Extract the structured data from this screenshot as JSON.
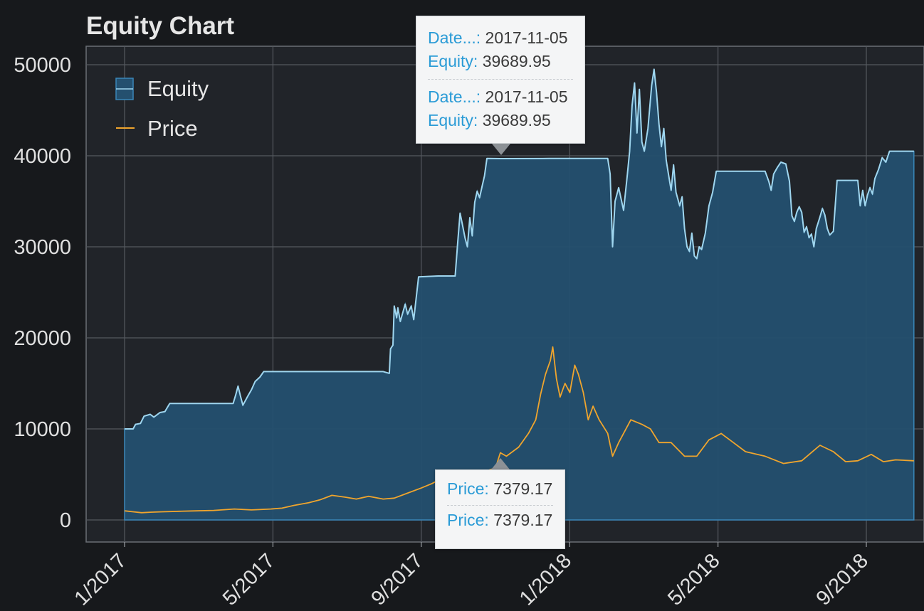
{
  "chart_data": {
    "type": "line",
    "title": "Equity Chart",
    "xlabel": "",
    "ylabel": "",
    "ylim": [
      0,
      50000
    ],
    "y_ticks": [
      "0",
      "10000",
      "20000",
      "30000",
      "40000",
      "50000"
    ],
    "x_ticks": [
      "1/2017",
      "5/2017",
      "9/2017",
      "1/2018",
      "5/2018",
      "9/2018"
    ],
    "grid": true,
    "legend_position": "top-left",
    "series": [
      {
        "name": "Equity",
        "style": "area",
        "color": "#9fd6ef",
        "fill": "#24506f",
        "points": [
          [
            "2017-01-01",
            10000
          ],
          [
            "2017-01-08",
            10000
          ],
          [
            "2017-01-10",
            10500
          ],
          [
            "2017-01-14",
            10600
          ],
          [
            "2017-01-17",
            11400
          ],
          [
            "2017-01-22",
            11600
          ],
          [
            "2017-01-25",
            11300
          ],
          [
            "2017-01-30",
            11800
          ],
          [
            "2017-02-03",
            11900
          ],
          [
            "2017-02-07",
            12800
          ],
          [
            "2017-03-10",
            12800
          ],
          [
            "2017-03-31",
            12800
          ],
          [
            "2017-04-02",
            13700
          ],
          [
            "2017-04-04",
            14700
          ],
          [
            "2017-04-06",
            13600
          ],
          [
            "2017-04-08",
            12600
          ],
          [
            "2017-04-12",
            13600
          ],
          [
            "2017-04-15",
            14300
          ],
          [
            "2017-04-18",
            15200
          ],
          [
            "2017-04-22",
            15700
          ],
          [
            "2017-04-25",
            16300
          ],
          [
            "2017-05-15",
            16300
          ],
          [
            "2017-08-01",
            16300
          ],
          [
            "2017-08-06",
            16100
          ],
          [
            "2017-08-07",
            18800
          ],
          [
            "2017-08-09",
            19200
          ],
          [
            "2017-08-10",
            23500
          ],
          [
            "2017-08-12",
            22200
          ],
          [
            "2017-08-13",
            23300
          ],
          [
            "2017-08-15",
            21800
          ],
          [
            "2017-08-19",
            23700
          ],
          [
            "2017-08-21",
            22600
          ],
          [
            "2017-08-24",
            23500
          ],
          [
            "2017-08-26",
            22000
          ],
          [
            "2017-08-30",
            26700
          ],
          [
            "2017-09-15",
            26800
          ],
          [
            "2017-09-29",
            26800
          ],
          [
            "2017-10-01",
            30400
          ],
          [
            "2017-10-03",
            33700
          ],
          [
            "2017-10-05",
            32400
          ],
          [
            "2017-10-07",
            31000
          ],
          [
            "2017-10-09",
            30000
          ],
          [
            "2017-10-11",
            33200
          ],
          [
            "2017-10-13",
            31200
          ],
          [
            "2017-10-15",
            34900
          ],
          [
            "2017-10-17",
            36100
          ],
          [
            "2017-10-19",
            35400
          ],
          [
            "2017-10-21",
            36600
          ],
          [
            "2017-10-23",
            37800
          ],
          [
            "2017-10-25",
            39700
          ],
          [
            "2017-11-05",
            39690
          ],
          [
            "2017-12-15",
            39700
          ],
          [
            "2018-02-01",
            39700
          ],
          [
            "2018-02-03",
            38000
          ],
          [
            "2018-02-05",
            30000
          ],
          [
            "2018-02-07",
            35000
          ],
          [
            "2018-02-10",
            36500
          ],
          [
            "2018-02-14",
            34000
          ],
          [
            "2018-02-17",
            37800
          ],
          [
            "2018-02-19",
            40500
          ],
          [
            "2018-02-21",
            45500
          ],
          [
            "2018-02-23",
            48000
          ],
          [
            "2018-02-25",
            42500
          ],
          [
            "2018-02-27",
            47300
          ],
          [
            "2018-03-01",
            41500
          ],
          [
            "2018-03-03",
            40500
          ],
          [
            "2018-03-06",
            43000
          ],
          [
            "2018-03-09",
            47700
          ],
          [
            "2018-03-11",
            49500
          ],
          [
            "2018-03-13",
            47000
          ],
          [
            "2018-03-15",
            43500
          ],
          [
            "2018-03-17",
            41000
          ],
          [
            "2018-03-19",
            43000
          ],
          [
            "2018-03-21",
            39500
          ],
          [
            "2018-03-23",
            37800
          ],
          [
            "2018-03-25",
            36200
          ],
          [
            "2018-03-27",
            39000
          ],
          [
            "2018-03-29",
            36000
          ],
          [
            "2018-04-01",
            34500
          ],
          [
            "2018-04-03",
            35500
          ],
          [
            "2018-04-05",
            32000
          ],
          [
            "2018-04-07",
            30000
          ],
          [
            "2018-04-09",
            29500
          ],
          [
            "2018-04-11",
            31500
          ],
          [
            "2018-04-13",
            29000
          ],
          [
            "2018-04-15",
            28700
          ],
          [
            "2018-04-17",
            30000
          ],
          [
            "2018-04-19",
            29700
          ],
          [
            "2018-04-22",
            31500
          ],
          [
            "2018-04-25",
            34500
          ],
          [
            "2018-04-28",
            36000
          ],
          [
            "2018-05-01",
            38300
          ],
          [
            "2018-06-10",
            38300
          ],
          [
            "2018-06-13",
            37200
          ],
          [
            "2018-06-15",
            36200
          ],
          [
            "2018-06-17",
            38000
          ],
          [
            "2018-06-20",
            38700
          ],
          [
            "2018-06-23",
            39300
          ],
          [
            "2018-06-27",
            39100
          ],
          [
            "2018-06-30",
            37200
          ],
          [
            "2018-07-02",
            33400
          ],
          [
            "2018-07-04",
            32800
          ],
          [
            "2018-07-06",
            33800
          ],
          [
            "2018-07-08",
            34400
          ],
          [
            "2018-07-10",
            33800
          ],
          [
            "2018-07-12",
            31600
          ],
          [
            "2018-07-14",
            32200
          ],
          [
            "2018-07-16",
            31000
          ],
          [
            "2018-07-18",
            31400
          ],
          [
            "2018-07-20",
            30000
          ],
          [
            "2018-07-22",
            32000
          ],
          [
            "2018-07-25",
            33300
          ],
          [
            "2018-07-27",
            34200
          ],
          [
            "2018-07-29",
            33500
          ],
          [
            "2018-07-31",
            32000
          ],
          [
            "2018-08-02",
            31300
          ],
          [
            "2018-08-05",
            31700
          ],
          [
            "2018-08-08",
            37300
          ],
          [
            "2018-08-25",
            37300
          ],
          [
            "2018-08-27",
            34500
          ],
          [
            "2018-08-29",
            36200
          ],
          [
            "2018-08-31",
            34500
          ],
          [
            "2018-09-02",
            35700
          ],
          [
            "2018-09-04",
            36500
          ],
          [
            "2018-09-06",
            35800
          ],
          [
            "2018-09-08",
            37500
          ],
          [
            "2018-09-11",
            38500
          ],
          [
            "2018-09-14",
            39800
          ],
          [
            "2018-09-17",
            39300
          ],
          [
            "2018-09-20",
            40500
          ],
          [
            "2018-10-10",
            40500
          ]
        ]
      },
      {
        "name": "Price",
        "style": "line",
        "color": "#f0a52d",
        "points": [
          [
            "2017-01-01",
            1000
          ],
          [
            "2017-01-08",
            900
          ],
          [
            "2017-01-15",
            800
          ],
          [
            "2017-01-22",
            850
          ],
          [
            "2017-02-01",
            900
          ],
          [
            "2017-02-15",
            950
          ],
          [
            "2017-03-01",
            1000
          ],
          [
            "2017-03-15",
            1050
          ],
          [
            "2017-04-01",
            1200
          ],
          [
            "2017-04-15",
            1100
          ],
          [
            "2017-05-01",
            1200
          ],
          [
            "2017-05-10",
            1300
          ],
          [
            "2017-05-20",
            1600
          ],
          [
            "2017-06-01",
            1900
          ],
          [
            "2017-06-10",
            2200
          ],
          [
            "2017-06-20",
            2700
          ],
          [
            "2017-07-01",
            2500
          ],
          [
            "2017-07-10",
            2300
          ],
          [
            "2017-07-20",
            2600
          ],
          [
            "2017-08-01",
            2300
          ],
          [
            "2017-08-10",
            2400
          ],
          [
            "2017-08-20",
            2900
          ],
          [
            "2017-09-01",
            3500
          ],
          [
            "2017-09-10",
            4000
          ],
          [
            "2017-09-20",
            4700
          ],
          [
            "2017-09-28",
            4300
          ],
          [
            "2017-10-10",
            4500
          ],
          [
            "2017-10-20",
            5200
          ],
          [
            "2017-11-01",
            5700
          ],
          [
            "2017-11-05",
            7379.17
          ],
          [
            "2017-11-10",
            7000
          ],
          [
            "2017-11-20",
            8000
          ],
          [
            "2017-11-28",
            9500
          ],
          [
            "2017-12-04",
            11000
          ],
          [
            "2017-12-08",
            13800
          ],
          [
            "2017-12-12",
            16000
          ],
          [
            "2017-12-16",
            17500
          ],
          [
            "2017-12-18",
            19000
          ],
          [
            "2017-12-21",
            15500
          ],
          [
            "2017-12-24",
            13500
          ],
          [
            "2017-12-28",
            15000
          ],
          [
            "2018-01-01",
            14000
          ],
          [
            "2018-01-05",
            17000
          ],
          [
            "2018-01-08",
            16000
          ],
          [
            "2018-01-12",
            14000
          ],
          [
            "2018-01-16",
            11000
          ],
          [
            "2018-01-20",
            12500
          ],
          [
            "2018-01-25",
            11000
          ],
          [
            "2018-02-01",
            9500
          ],
          [
            "2018-02-05",
            7000
          ],
          [
            "2018-02-10",
            8500
          ],
          [
            "2018-02-20",
            11000
          ],
          [
            "2018-03-01",
            10500
          ],
          [
            "2018-03-08",
            10000
          ],
          [
            "2018-03-15",
            8500
          ],
          [
            "2018-03-25",
            8500
          ],
          [
            "2018-04-05",
            7000
          ],
          [
            "2018-04-15",
            7000
          ],
          [
            "2018-04-25",
            8800
          ],
          [
            "2018-05-05",
            9500
          ],
          [
            "2018-05-15",
            8500
          ],
          [
            "2018-05-25",
            7500
          ],
          [
            "2018-06-10",
            7000
          ],
          [
            "2018-06-25",
            6200
          ],
          [
            "2018-07-10",
            6500
          ],
          [
            "2018-07-25",
            8200
          ],
          [
            "2018-08-05",
            7500
          ],
          [
            "2018-08-15",
            6400
          ],
          [
            "2018-08-25",
            6500
          ],
          [
            "2018-09-05",
            7200
          ],
          [
            "2018-09-15",
            6400
          ],
          [
            "2018-09-25",
            6600
          ],
          [
            "2018-10-10",
            6500
          ]
        ]
      }
    ]
  },
  "legend": [
    {
      "label": "Equity"
    },
    {
      "label": "Price"
    }
  ],
  "tooltip_top": {
    "date_key": "Date...:",
    "date_val": "2017-11-05",
    "equity_key": "Equity:",
    "equity_val": "39689.95",
    "date_key2": "Date...:",
    "date_val2": "2017-11-05",
    "equity_key2": "Equity:",
    "equity_val2": "39689.95"
  },
  "tooltip_bottom": {
    "price_key": "Price:",
    "price_val": "7379.17",
    "price_key2": "Price:",
    "price_val2": "7379.17"
  }
}
